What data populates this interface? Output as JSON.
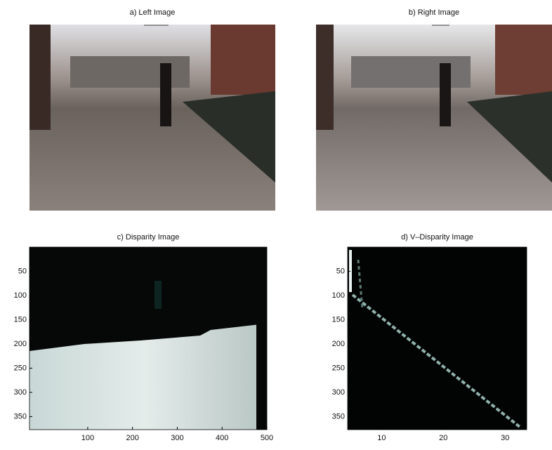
{
  "panels": [
    {
      "title": "a) Left Image"
    },
    {
      "title": "b) Right Image"
    },
    {
      "title": "c) Disparity Image",
      "xlim": [
        -30,
        500
      ],
      "ylim": [
        0,
        377
      ],
      "xticks": [
        100,
        200,
        300,
        400,
        500
      ],
      "yticks": [
        50,
        100,
        150,
        200,
        250,
        300,
        350
      ]
    },
    {
      "title": "d) V–Disparity Image",
      "xlim": [
        4.5,
        33.5
      ],
      "ylim": [
        0,
        377
      ],
      "xticks": [
        10,
        20,
        30
      ],
      "yticks": [
        50,
        100,
        150,
        200,
        250,
        300,
        350
      ]
    }
  ]
}
